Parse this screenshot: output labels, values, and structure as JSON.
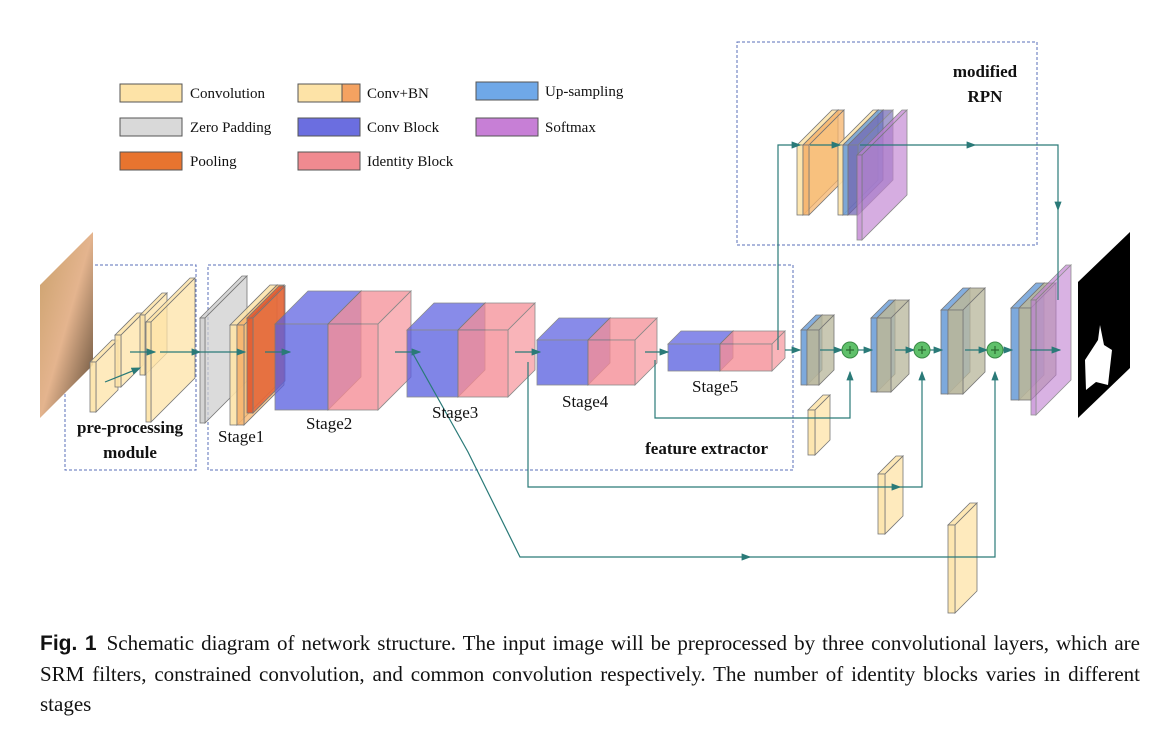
{
  "legend": [
    {
      "label": "Convolution",
      "color": "#fde3a7"
    },
    {
      "label": "Zero Padding",
      "color": "#d9d9d9"
    },
    {
      "label": "Pooling",
      "color": "#e8742f"
    },
    {
      "label": "Conv+BN",
      "color": "#fde3a7",
      "color2": "#f4a261"
    },
    {
      "label": "Conv Block",
      "color": "#6b6ee0"
    },
    {
      "label": "Identity Block",
      "color": "#f08a90"
    },
    {
      "label": "Up-sampling",
      "color": "#6fa8e8"
    },
    {
      "label": "Softmax",
      "color": "#c77fd6"
    }
  ],
  "labels": {
    "preprocessing_line1": "pre-processing",
    "preprocessing_line2": "module",
    "stage1": "Stage1",
    "stage2": "Stage2",
    "stage3": "Stage3",
    "stage4": "Stage4",
    "stage5": "Stage5",
    "feature_extractor": "feature extractor",
    "rpn_line1": "modified",
    "rpn_line2": "RPN"
  },
  "caption": {
    "fig_label": "Fig. 1",
    "text": "Schematic diagram of network structure. The input image will be preprocessed by three convolutional layers, which are SRM filters, constrained convolution, and common convolution respectively. The number of identity blocks varies in different stages"
  }
}
